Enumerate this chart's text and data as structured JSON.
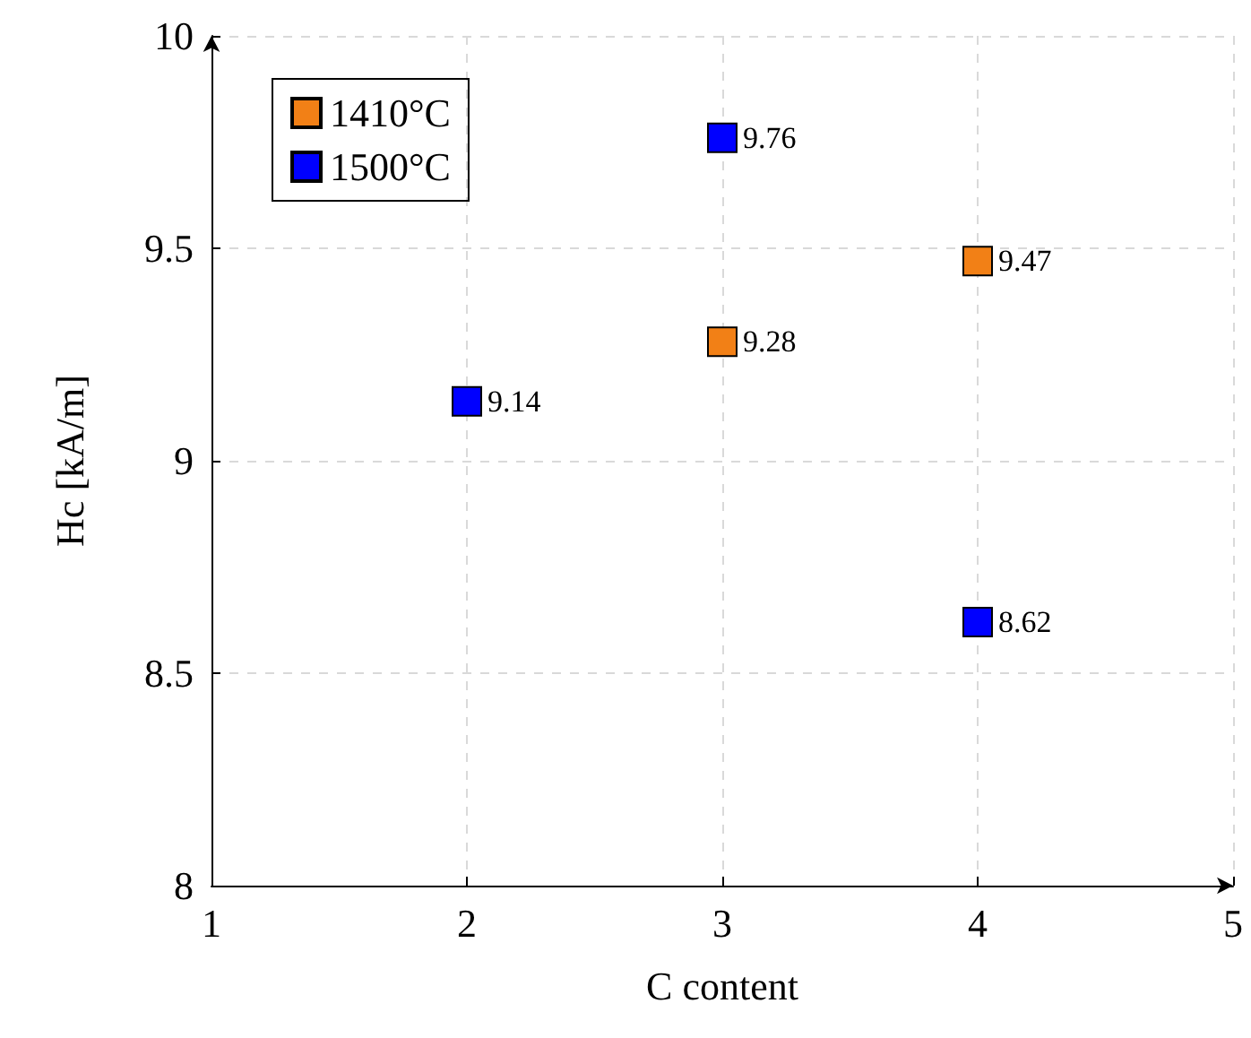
{
  "chart_data": {
    "type": "scatter",
    "xlabel": "C content",
    "ylabel": "Hc [kA/m]",
    "xlim": [
      1,
      5
    ],
    "xticks": [
      1,
      2,
      3,
      4,
      5
    ],
    "ylim": [
      8,
      10
    ],
    "yticks": [
      8,
      8.5,
      9,
      9.5,
      10
    ],
    "grid": true,
    "legend": "top left",
    "marker": "square",
    "data_labels": true,
    "series": [
      {
        "name": "1410°C",
        "color": "#f28016",
        "x": [
          3,
          4
        ],
        "values": [
          9.28,
          9.47
        ]
      },
      {
        "name": "1500°C",
        "color": "#0000ff",
        "x": [
          2,
          3,
          4
        ],
        "values": [
          9.14,
          9.76,
          8.62
        ]
      }
    ]
  }
}
